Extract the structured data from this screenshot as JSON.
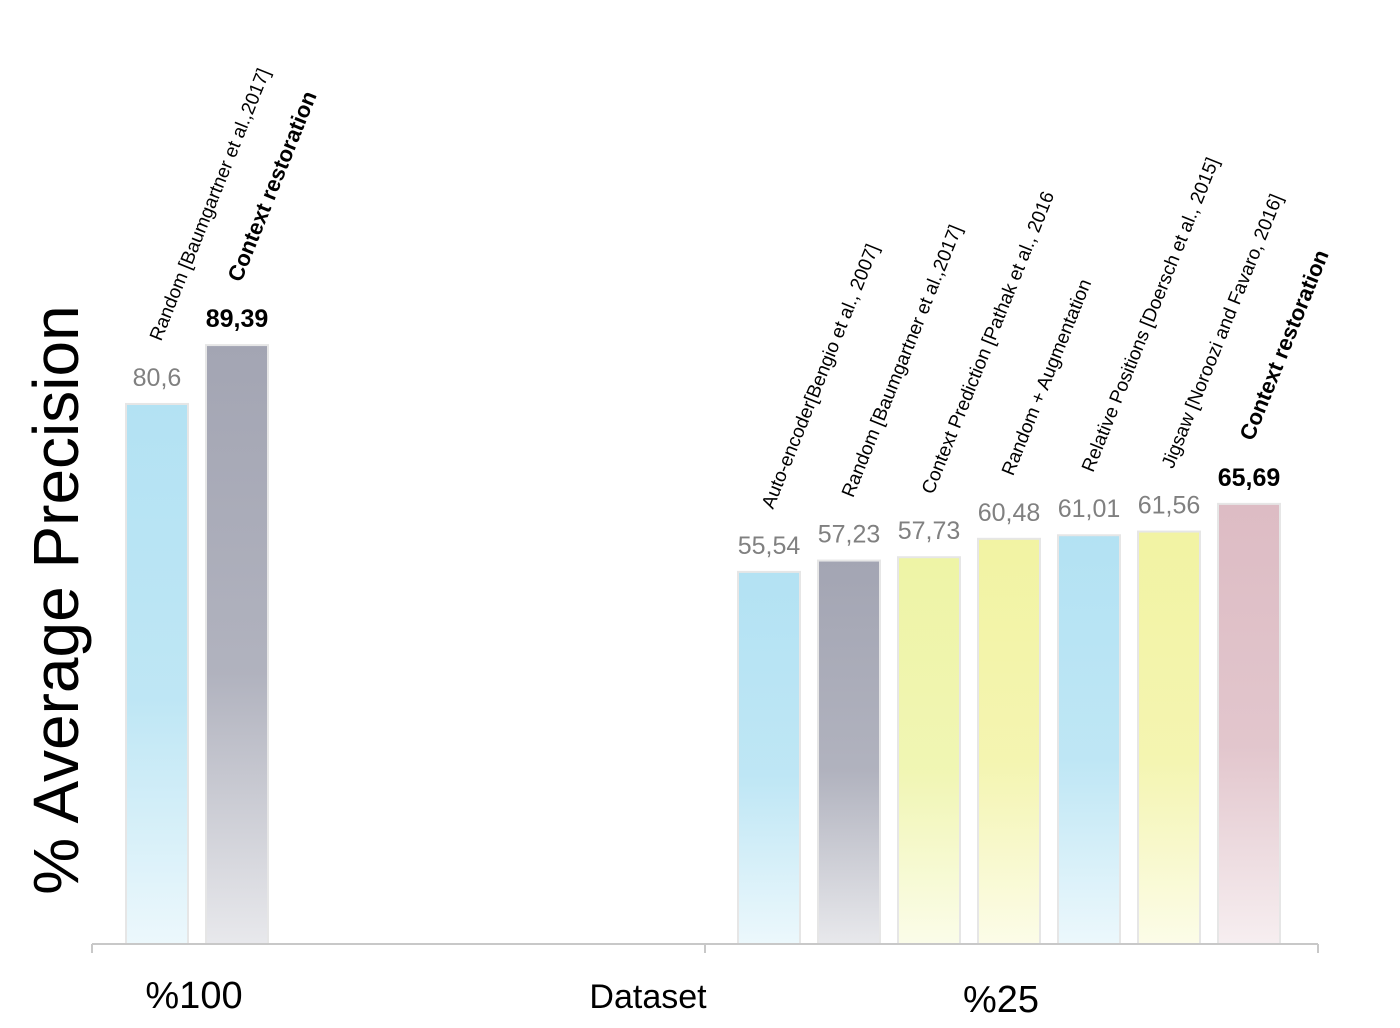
{
  "chart_data": {
    "type": "bar",
    "title": "",
    "xlabel": "Dataset",
    "ylabel": "% Average Precision",
    "ylim": [
      0,
      100
    ],
    "grid": false,
    "legend": "none",
    "groups": [
      {
        "label": "%100",
        "bars": [
          {
            "name": "Random [Baumgartner et al.,2017]",
            "value": 80.6,
            "value_label": "80,6",
            "color": "#b3e2f3",
            "bold": false
          },
          {
            "name": "Context restoration",
            "value": 89.39,
            "value_label": "89,39",
            "color": "#a3a5b3",
            "bold": true
          }
        ]
      },
      {
        "label": "%25",
        "bars": [
          {
            "name": "Auto-encoder[Bengio et al., 2007]",
            "value": 55.54,
            "value_label": "55,54",
            "color": "#b3e2f3",
            "bold": false
          },
          {
            "name": "Random [Baumgartner et al.,2017]",
            "value": 57.23,
            "value_label": "57,23",
            "color": "#a3a5b3",
            "bold": false
          },
          {
            "name": "Context Prediction [Pathak et al., 2016",
            "value": 57.73,
            "value_label": "57,73",
            "color": "#eef4a6",
            "bold": false
          },
          {
            "name": "Random + Augmentation",
            "value": 60.48,
            "value_label": "60,48",
            "color": "#f2f3a3",
            "bold": false
          },
          {
            "name": "Relative Positions [Doersch et al., 2015]",
            "value": 61.01,
            "value_label": "61,01",
            "color": "#b3e2f3",
            "bold": false
          },
          {
            "name": "Jigsaw [Noroozi and Favaro, 2016]",
            "value": 61.56,
            "value_label": "61,56",
            "color": "#f2f3a3",
            "bold": false
          },
          {
            "name": "Context restoration",
            "value": 65.69,
            "value_label": "65,69",
            "color": "#ddbcc4",
            "bold": true
          }
        ]
      }
    ]
  }
}
